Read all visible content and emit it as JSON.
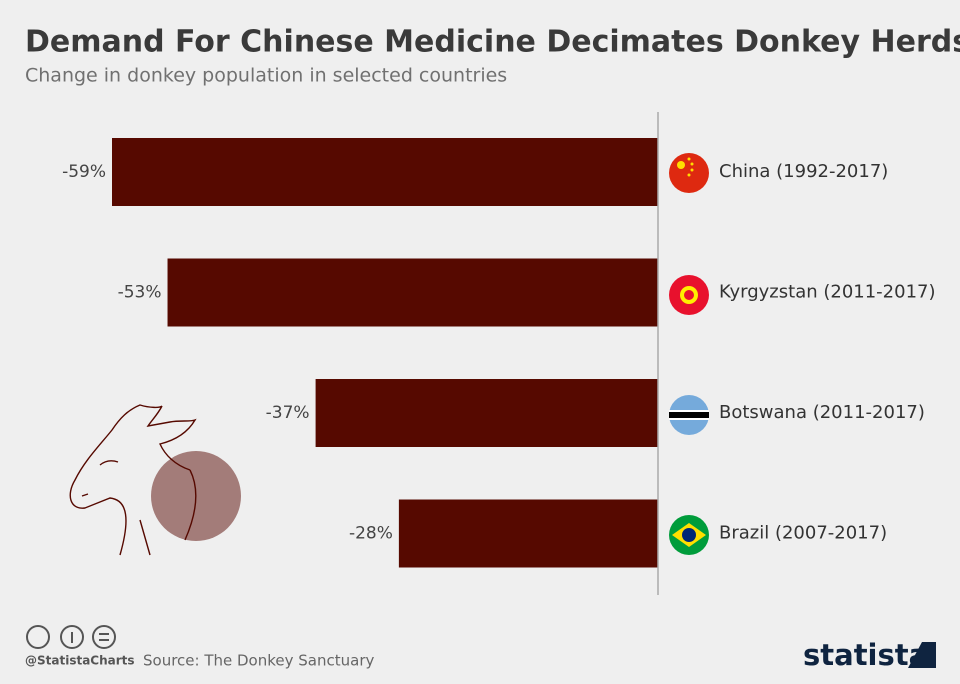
{
  "chart_data": {
    "type": "bar",
    "orientation": "horizontal",
    "title": "Demand For Chinese Medicine Decimates Donkey Herds",
    "subtitle": "Change in donkey population in selected countries",
    "categories": [
      "China (1992-2017)",
      "Kyrgyzstan (2011-2017)",
      "Botswana (2011-2017)",
      "Brazil (2007-2017)"
    ],
    "values": [
      -59,
      -53,
      -37,
      -28
    ],
    "value_labels": [
      "-59%",
      "-53%",
      "-37%",
      "-28%"
    ],
    "color": "#560900",
    "xlim": [
      -59,
      0
    ]
  },
  "footer": {
    "handle": "@StatistaCharts",
    "source": "Source: The Donkey Sanctuary",
    "brand": "statista"
  }
}
